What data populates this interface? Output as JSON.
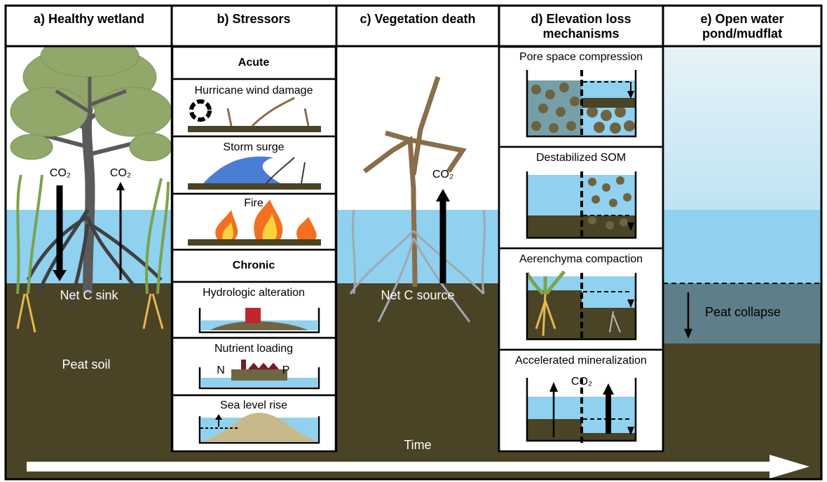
{
  "panels": [
    {
      "title": "a) Healthy wetland",
      "labels": [
        "CO₂",
        "CO₂",
        "Net C sink",
        "Peat soil"
      ]
    },
    {
      "title": "b) Stressors",
      "groups": [
        {
          "heading": "Acute",
          "items": [
            "Hurricane wind damage",
            "Storm surge",
            "Fire"
          ]
        },
        {
          "heading": "Chronic",
          "items": [
            "Hydrologic alteration",
            "Nutrient loading",
            "Sea level rise"
          ]
        }
      ],
      "nutrient_labels": [
        "N",
        "P"
      ]
    },
    {
      "title": "c) Vegetation death",
      "labels": [
        "CO₂",
        "Net C source"
      ]
    },
    {
      "title_lines": [
        "d) Elevation loss",
        "mechanisms"
      ],
      "items": [
        "Pore space compression",
        "Destabilized SOM",
        "Aerenchyma compaction",
        "Accelerated mineralization"
      ],
      "co2": "CO₂"
    },
    {
      "title_lines": [
        "e) Open water",
        "pond/mudflat"
      ],
      "labels": [
        "Peat collapse"
      ]
    }
  ],
  "time_label": "Time"
}
